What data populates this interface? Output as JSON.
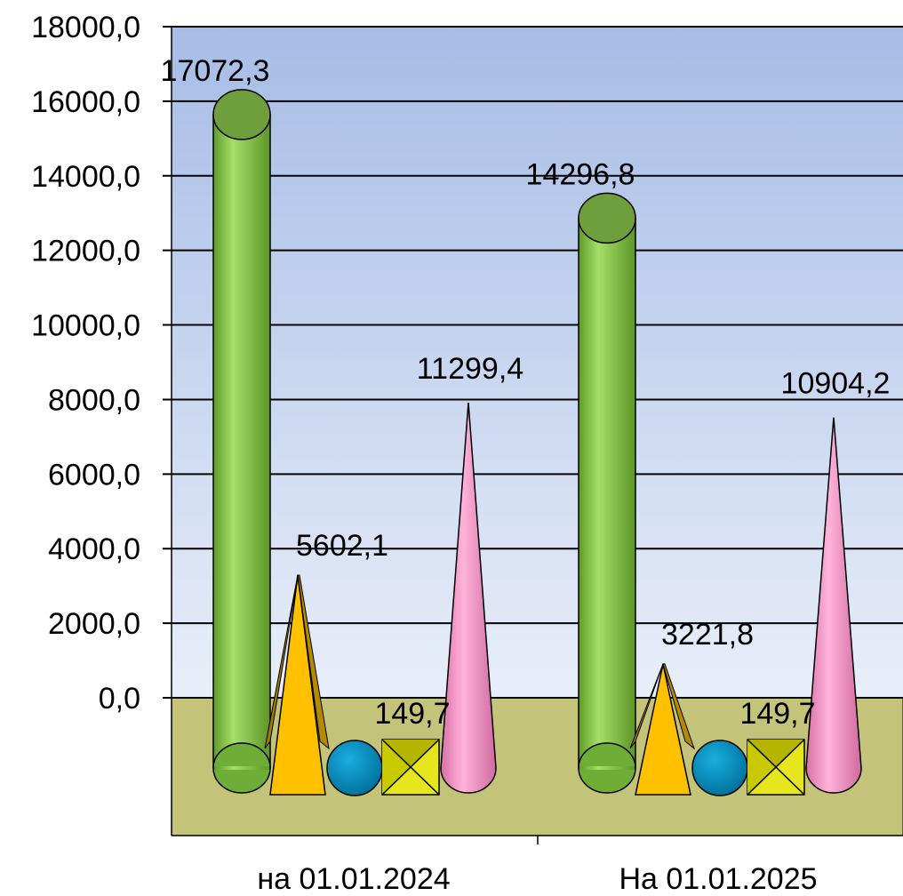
{
  "chart_data": {
    "type": "bar",
    "title": "",
    "xlabel": "",
    "ylabel": "",
    "categories": [
      "на 01.01.2024",
      "На 01.01.2025"
    ],
    "ylim": [
      0,
      18000
    ],
    "yticks": [
      "0,0",
      "2000,0",
      "4000,0",
      "6000,0",
      "8000,0",
      "10000,0",
      "12000,0",
      "14000,0",
      "16000,0",
      "18000,0"
    ],
    "grid": true,
    "legend": "none",
    "series": [
      {
        "values": [
          17072.3,
          14296.8
        ],
        "labels": [
          "17072,3",
          "14296,8"
        ],
        "shape": "cylinder",
        "color": "#8fd14f"
      },
      {
        "values": [
          5602.1,
          3221.8
        ],
        "labels": [
          "5602,1",
          "3221,8"
        ],
        "shape": "pyramid",
        "color": "#ffc000"
      },
      {
        "values": [
          0,
          0
        ],
        "labels": [
          "",
          ""
        ],
        "shape": "sphere",
        "color": "#0091c4"
      },
      {
        "values": [
          149.7,
          149.7
        ],
        "labels": [
          "149,7",
          "149,7"
        ],
        "shape": "box",
        "color": "#e6e600"
      },
      {
        "values": [
          11299.4,
          10904.2
        ],
        "labels": [
          "11299,4",
          "10904,2"
        ],
        "shape": "cone",
        "color": "#ff99cc"
      }
    ]
  }
}
